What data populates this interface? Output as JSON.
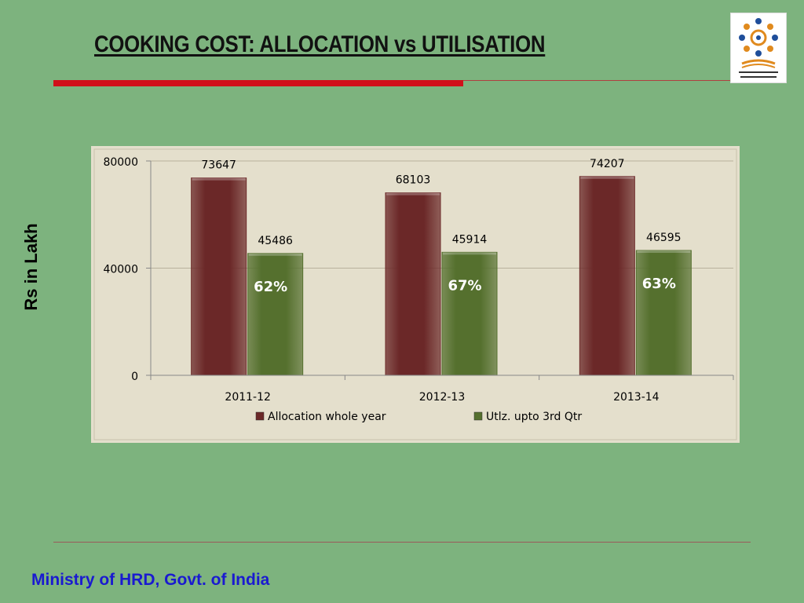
{
  "slide": {
    "title": "COOKING COST: ALLOCATION vs UTILISATION",
    "y_side_label": "Rs in Lakh",
    "footer": "Ministry of HRD, Govt. of India"
  },
  "logo": {
    "icon": "mid-day-meal-logo"
  },
  "colors": {
    "background": "#7db37e",
    "chart_bg": "#e4dfcc",
    "allocation": "#6b2828",
    "utilisation": "#55702e",
    "title_rule": "#d0101a",
    "footer": "#1a1ad0"
  },
  "chart_data": {
    "type": "bar",
    "categories": [
      "2011-12",
      "2012-13",
      "2013-14"
    ],
    "series": [
      {
        "name": "Allocation whole year",
        "values": [
          73647,
          68103,
          74207
        ]
      },
      {
        "name": "Utlz. upto 3rd Qtr",
        "values": [
          45486,
          45914,
          46595
        ]
      }
    ],
    "percent_labels": [
      "62%",
      "67%",
      "63%"
    ],
    "yticks": [
      0,
      40000,
      80000
    ],
    "ylim": [
      0,
      80000
    ],
    "grid": true,
    "legend_position": "bottom"
  }
}
